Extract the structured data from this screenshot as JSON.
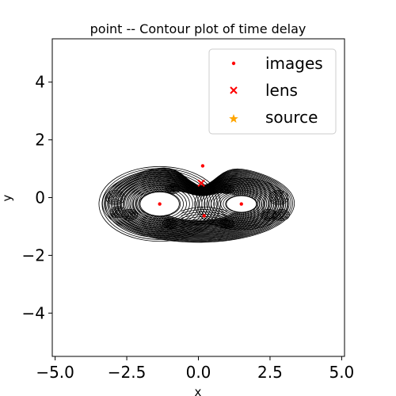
{
  "chart_data": {
    "type": "contour",
    "title": "point -- Contour plot of time delay",
    "xlabel": "x",
    "ylabel": "y",
    "xlim": [
      -5.1,
      5.1
    ],
    "ylim": [
      -5.5,
      5.5
    ],
    "x_ticks": [
      -5.0,
      -2.5,
      0.0,
      2.5,
      5.0
    ],
    "x_tick_labels": [
      "−5.0",
      "−2.5",
      "0.0",
      "2.5",
      "5.0"
    ],
    "y_ticks": [
      -4,
      -2,
      0,
      2,
      4
    ],
    "y_tick_labels": [
      "−4",
      "−2",
      "0",
      "2",
      "4"
    ],
    "grid": false,
    "legend_position": "top-right",
    "legend": [
      {
        "label": "images",
        "marker": "dot",
        "color": "#ff0000"
      },
      {
        "label": "lens",
        "marker": "x",
        "color": "#ff0000"
      },
      {
        "label": "source",
        "marker": "star",
        "color": "#ffa500"
      }
    ],
    "series": [
      {
        "name": "images",
        "type": "scatter",
        "color": "#ff0000",
        "points": [
          [
            0.15,
            1.1
          ],
          [
            -1.35,
            -0.22
          ],
          [
            1.5,
            -0.22
          ],
          [
            0.2,
            -0.63
          ]
        ]
      },
      {
        "name": "lens",
        "type": "scatter",
        "color": "#ff0000",
        "points": [
          [
            0.1,
            0.5
          ]
        ]
      },
      {
        "name": "source",
        "type": "scatter",
        "color": "#ffa500",
        "points": []
      }
    ],
    "contour_color": "#000000",
    "contour_region": {
      "x_center": 0.0,
      "y_center": -0.2,
      "x_half_width": 3.35,
      "y_half_height": 1.35,
      "notch_x": 0.1,
      "notch_y": 0.5
    }
  }
}
